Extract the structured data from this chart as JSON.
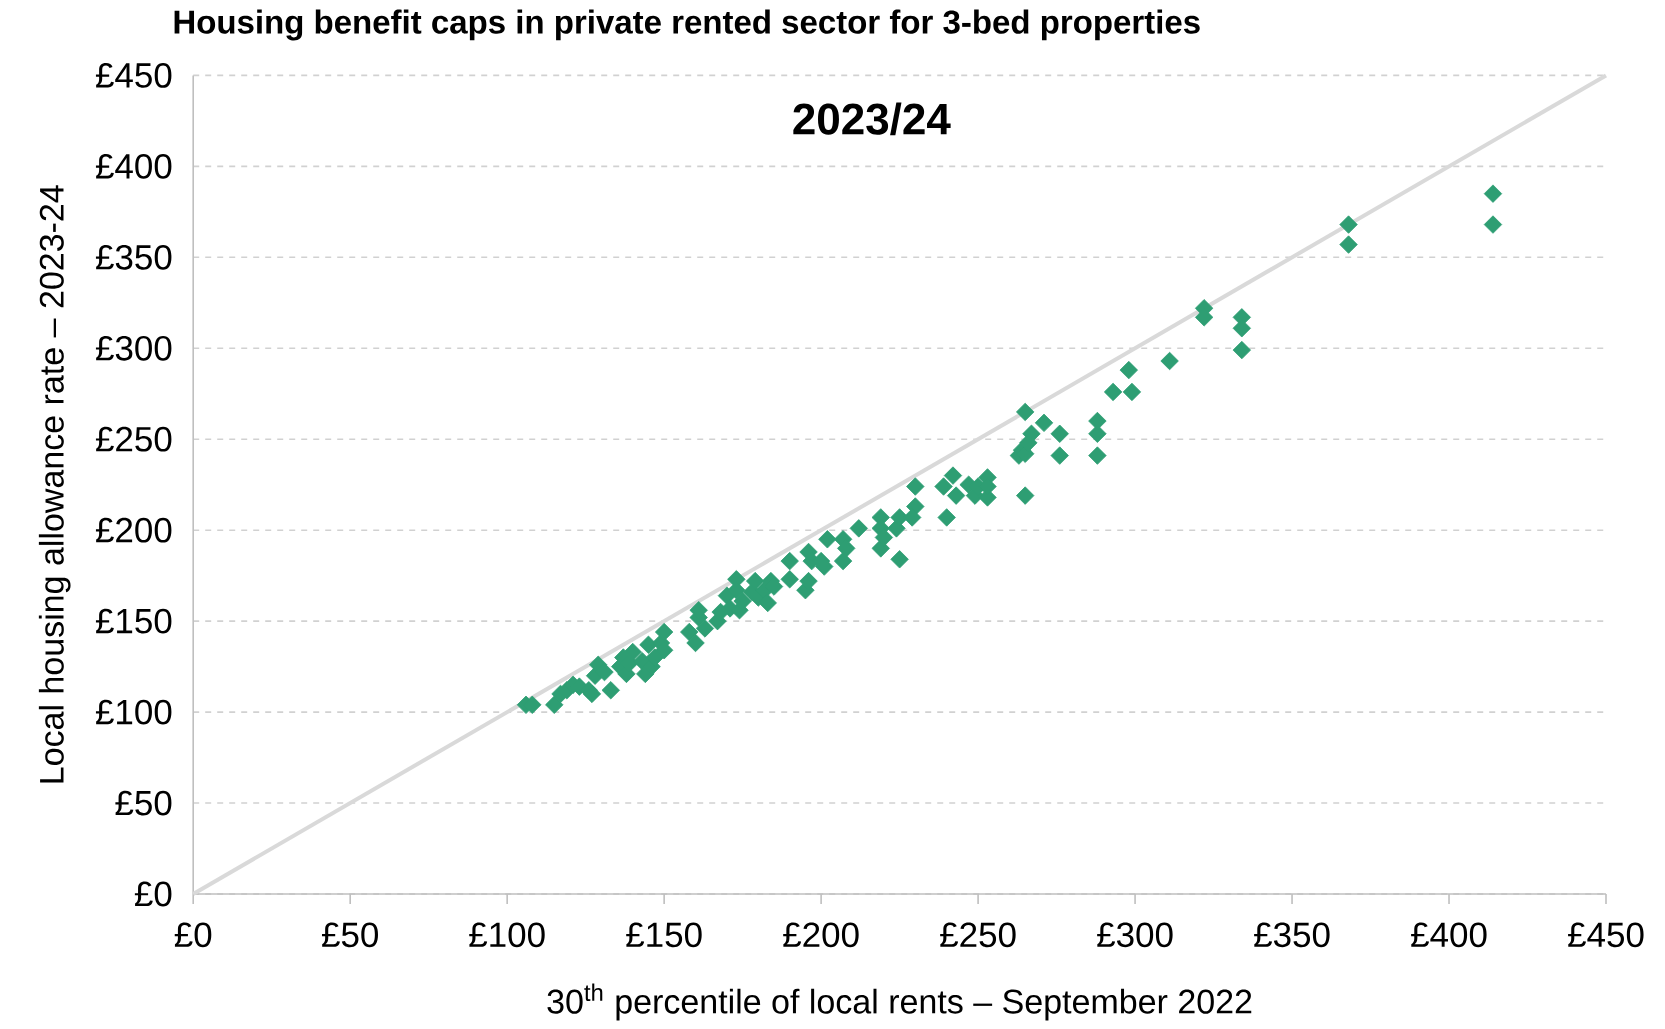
{
  "chart_data": {
    "type": "scatter",
    "title": "Housing benefit caps in private rented sector for 3-bed properties",
    "annotations": [
      "2023/24"
    ],
    "xlabel": "30$^{th}$ percentile of local rents – September 2022",
    "ylabel": "Local housing allowance rate – 2023-24",
    "xlim": [
      0,
      450
    ],
    "ylim": [
      0,
      450
    ],
    "xticks": [
      {
        "value": 0,
        "label": "£0"
      },
      {
        "value": 50,
        "label": "£50"
      },
      {
        "value": 100,
        "label": "£100"
      },
      {
        "value": 150,
        "label": "£150"
      },
      {
        "value": 200,
        "label": "£200"
      },
      {
        "value": 250,
        "label": "£250"
      },
      {
        "value": 300,
        "label": "£300"
      },
      {
        "value": 350,
        "label": "£350"
      },
      {
        "value": 400,
        "label": "£400"
      },
      {
        "value": 450,
        "label": "£450"
      }
    ],
    "yticks": [
      {
        "value": 0,
        "label": "£0"
      },
      {
        "value": 50,
        "label": "£50"
      },
      {
        "value": 100,
        "label": "£100"
      },
      {
        "value": 150,
        "label": "£150"
      },
      {
        "value": 200,
        "label": "£200"
      },
      {
        "value": 250,
        "label": "£250"
      },
      {
        "value": 300,
        "label": "£300"
      },
      {
        "value": 350,
        "label": "£350"
      },
      {
        "value": 400,
        "label": "£400"
      },
      {
        "value": 450,
        "label": "£450"
      }
    ],
    "grid": "y",
    "marker": "diamond",
    "series": [
      {
        "type": "line",
        "marker": "none",
        "color": "#d9d9d9",
        "x": [
          0,
          450
        ],
        "values": [
          0,
          450
        ]
      },
      {
        "color": "#2e9e73",
        "x": [
          106,
          108,
          115,
          117,
          119,
          121,
          123,
          126,
          127,
          128,
          129,
          131,
          133,
          136,
          137,
          138,
          139,
          140,
          143,
          144,
          145,
          146,
          147,
          149,
          150,
          150,
          158,
          160,
          161,
          161,
          163,
          167,
          168,
          170,
          171,
          173,
          173,
          174,
          175,
          178,
          179,
          180,
          182,
          183,
          184,
          185,
          190,
          190,
          195,
          196,
          196,
          197,
          200,
          201,
          202,
          207,
          207,
          208,
          212,
          219,
          219,
          219,
          220,
          224,
          225,
          225,
          230,
          230,
          229,
          239,
          240,
          242,
          243,
          247,
          249,
          250,
          253,
          253,
          253,
          263,
          264,
          265,
          265,
          265,
          266,
          267,
          271,
          276,
          276,
          288,
          288,
          288,
          293,
          298,
          299,
          311,
          322,
          322,
          334,
          334,
          334,
          368,
          368,
          414,
          414
        ],
        "values": [
          104,
          104,
          104,
          110,
          112,
          115,
          114,
          112,
          110,
          120,
          126,
          122,
          112,
          125,
          130,
          121,
          127,
          133,
          128,
          121,
          137,
          125,
          130,
          138,
          144,
          134,
          144,
          138,
          152,
          156,
          146,
          150,
          155,
          164,
          157,
          173,
          167,
          156,
          161,
          166,
          172,
          163,
          167,
          160,
          172,
          169,
          183,
          173,
          167,
          172,
          188,
          183,
          183,
          180,
          195,
          183,
          195,
          190,
          201,
          190,
          207,
          201,
          196,
          201,
          207,
          184,
          224,
          213,
          207,
          224,
          207,
          230,
          219,
          225,
          219,
          224,
          218,
          229,
          224,
          241,
          244,
          265,
          242,
          219,
          248,
          253,
          259,
          253,
          241,
          241,
          253,
          260,
          276,
          288,
          276,
          293,
          322,
          317,
          317,
          311,
          299,
          368,
          357,
          385,
          368
        ]
      }
    ]
  }
}
